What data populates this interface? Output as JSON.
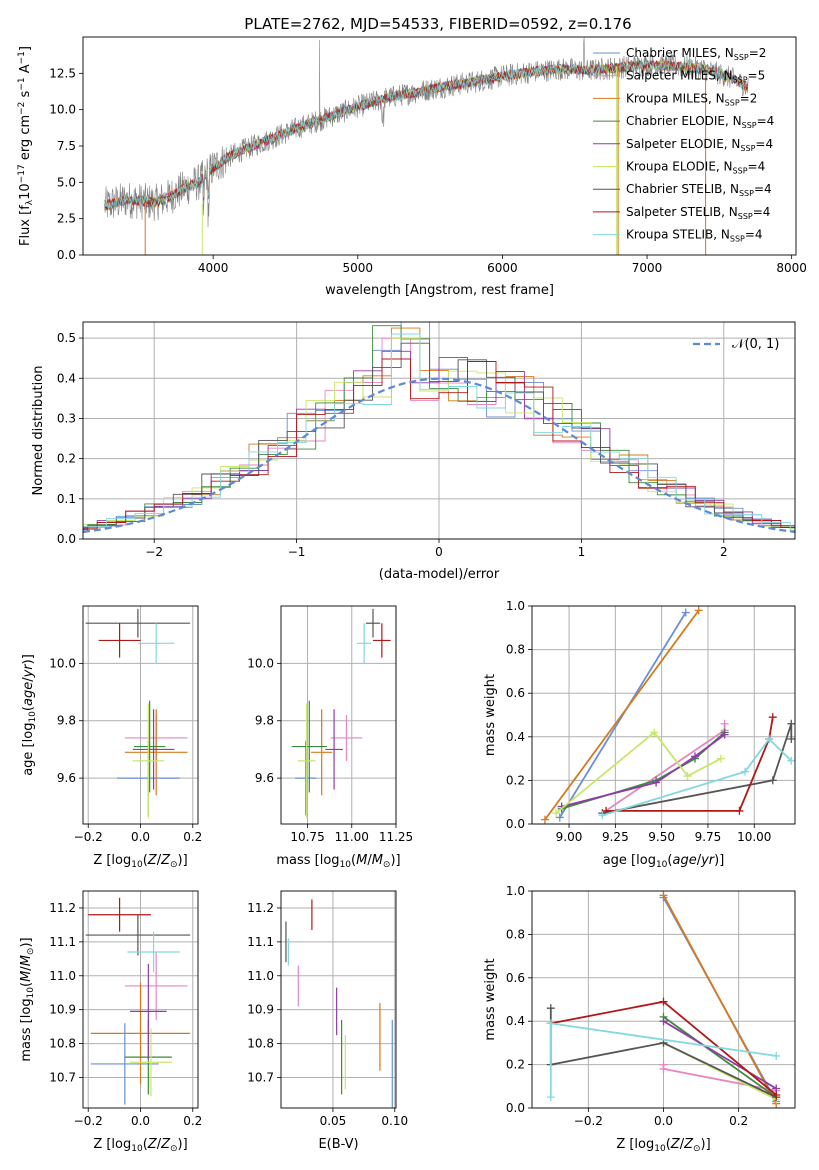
{
  "figure_title": "PLATE=2762, MJD=54533, FIBERID=0592, z=0.176",
  "colors": {
    "Chabrier MILES": "#6a8fd6",
    "Salpeter MILES": "#e487c0",
    "Kroupa MILES": "#d6781e",
    "Chabrier ELODIE": "#3c8a3c",
    "Salpeter ELODIE": "#8e3ca6",
    "Kroupa ELODIE": "#c8e66a",
    "Chabrier STELIB": "#555555",
    "Salpeter STELIB": "#b01818",
    "Kroupa STELIB": "#82d8df",
    "data": "#808080",
    "grid": "#b0b0b0"
  },
  "chart_data": [
    {
      "id": "spectrum",
      "type": "line",
      "title": "PLATE=2762, MJD=54533, FIBERID=0592, z=0.176",
      "xlabel": "wavelength [Angstrom, rest frame]",
      "ylabel_parts": [
        "Flux [f",
        "λ",
        "10",
        "−17",
        " erg cm",
        "−2",
        " s",
        "−1",
        " A",
        "−1",
        "]"
      ],
      "xlim": [
        3100,
        8030
      ],
      "ylim": [
        0,
        15
      ],
      "xticks": [
        4000,
        5000,
        6000,
        7000,
        8000
      ],
      "yticks": [
        0.0,
        2.5,
        5.0,
        7.5,
        10.0,
        12.5
      ],
      "grid": false,
      "legend_position": "right",
      "continuum_x": [
        3250,
        3400,
        3600,
        3700,
        3800,
        3900,
        4000,
        4100,
        4200,
        4400,
        4600,
        4800,
        5000,
        5200,
        5400,
        5600,
        5800,
        6000,
        6200,
        6400,
        6600,
        6800,
        7000,
        7200,
        7400,
        7600,
        7700
      ],
      "continuum_y": [
        3.4,
        3.8,
        3.6,
        4.0,
        4.6,
        5.0,
        6.0,
        6.7,
        7.2,
        8.0,
        8.8,
        9.5,
        10.2,
        10.8,
        11.2,
        11.6,
        11.9,
        12.3,
        12.6,
        12.8,
        12.7,
        12.9,
        13.1,
        13.0,
        12.8,
        12.1,
        11.5
      ],
      "series": [
        {
          "name": "Chabrier MILES",
          "n_ssp": "2"
        },
        {
          "name": "Salpeter MILES",
          "n_ssp": "5"
        },
        {
          "name": "Kroupa MILES",
          "n_ssp": "2"
        },
        {
          "name": "Chabrier ELODIE",
          "n_ssp": "4"
        },
        {
          "name": "Salpeter ELODIE",
          "n_ssp": "4"
        },
        {
          "name": "Kroupa ELODIE",
          "n_ssp": "4"
        },
        {
          "name": "Chabrier STELIB",
          "n_ssp": "4"
        },
        {
          "name": "Salpeter STELIB",
          "n_ssp": "4"
        },
        {
          "name": "Kroupa STELIB",
          "n_ssp": "4"
        }
      ]
    },
    {
      "id": "residuals",
      "type": "line",
      "xlabel": "(data-model)/error",
      "ylabel": "Normed distribution",
      "xlim": [
        -2.5,
        2.5
      ],
      "ylim": [
        0,
        0.54
      ],
      "xticks": [
        -2,
        -1,
        0,
        1,
        2
      ],
      "yticks": [
        0.0,
        0.1,
        0.2,
        0.3,
        0.4,
        0.5
      ],
      "grid": true,
      "legend": "𝒩(0, 1)",
      "legend_position": "top-right"
    },
    {
      "id": "age_vs_Z",
      "type": "scatter",
      "xlabel": "Z [log10(Z/Z⊙)]",
      "ylabel": "age  [log10(age/yr)]",
      "xlim": [
        -0.22,
        0.22
      ],
      "ylim": [
        9.44,
        10.2
      ],
      "xticks": [
        -0.2,
        0.0,
        0.2
      ],
      "yticks": [
        9.6,
        9.8,
        10.0
      ],
      "grid": true,
      "points": [
        {
          "series": "Chabrier MILES",
          "x": 0.03,
          "y": 9.6,
          "xerr": 0.12,
          "yerr": 0.13
        },
        {
          "series": "Salpeter MILES",
          "x": 0.06,
          "y": 9.74,
          "xerr": 0.12,
          "yerr": 0.08
        },
        {
          "series": "Kroupa MILES",
          "x": 0.06,
          "y": 9.69,
          "xerr": 0.12,
          "yerr": 0.15
        },
        {
          "series": "Chabrier ELODIE",
          "x": 0.035,
          "y": 9.71,
          "xerr": 0.06,
          "yerr": 0.16
        },
        {
          "series": "Salpeter ELODIE",
          "x": 0.05,
          "y": 9.7,
          "xerr": 0.08,
          "yerr": 0.14
        },
        {
          "series": "Kroupa ELODIE",
          "x": 0.03,
          "y": 9.66,
          "xerr": 0.06,
          "yerr": 0.2
        },
        {
          "series": "Chabrier STELIB",
          "x": -0.01,
          "y": 10.14,
          "xerr": 0.2,
          "yerr": 0.05
        },
        {
          "series": "Salpeter STELIB",
          "x": -0.08,
          "y": 10.08,
          "xerr": 0.08,
          "yerr": 0.06
        },
        {
          "series": "Kroupa STELIB",
          "x": 0.06,
          "y": 10.07,
          "xerr": 0.07,
          "yerr": 0.07
        }
      ]
    },
    {
      "id": "age_vs_mass",
      "type": "scatter",
      "xlabel": "mass [log10(M/M⊙)]",
      "xlim": [
        10.6,
        11.25
      ],
      "ylim": [
        9.44,
        10.2
      ],
      "xticks": [
        10.75,
        11.0,
        11.25
      ],
      "yticks": [
        9.6,
        9.8,
        10.0
      ],
      "grid": true,
      "points": [
        {
          "series": "Chabrier MILES",
          "x": 10.74,
          "y": 9.6,
          "xerr": 0.06,
          "yerr": 0.13
        },
        {
          "series": "Salpeter MILES",
          "x": 10.97,
          "y": 9.74,
          "xerr": 0.09,
          "yerr": 0.08
        },
        {
          "series": "Kroupa MILES",
          "x": 10.83,
          "y": 9.69,
          "xerr": 0.06,
          "yerr": 0.15
        },
        {
          "series": "Chabrier ELODIE",
          "x": 10.76,
          "y": 9.71,
          "xerr": 0.1,
          "yerr": 0.16
        },
        {
          "series": "Salpeter ELODIE",
          "x": 10.9,
          "y": 9.7,
          "xerr": 0.05,
          "yerr": 0.14
        },
        {
          "series": "Kroupa ELODIE",
          "x": 10.745,
          "y": 9.66,
          "xerr": 0.05,
          "yerr": 0.2
        },
        {
          "series": "Chabrier STELIB",
          "x": 11.12,
          "y": 10.14,
          "xerr": 0.04,
          "yerr": 0.05
        },
        {
          "series": "Salpeter STELIB",
          "x": 11.17,
          "y": 10.08,
          "xerr": 0.05,
          "yerr": 0.06
        },
        {
          "series": "Kroupa STELIB",
          "x": 11.07,
          "y": 10.07,
          "xerr": 0.04,
          "yerr": 0.07
        }
      ]
    },
    {
      "id": "weight_vs_age",
      "type": "line",
      "xlabel": "age  [log10(age/yr)]",
      "ylabel": "mass weight",
      "xlim": [
        8.8,
        10.22
      ],
      "ylim": [
        0,
        1.0
      ],
      "xticks": [
        9.0,
        9.25,
        9.5,
        9.75,
        10.0
      ],
      "yticks": [
        0.0,
        0.2,
        0.4,
        0.6,
        0.8,
        1.0
      ],
      "grid": true,
      "series": [
        {
          "name": "Chabrier MILES",
          "x": [
            8.95,
            9.63
          ],
          "y": [
            0.03,
            0.97
          ]
        },
        {
          "name": "Kroupa MILES",
          "x": [
            8.87,
            9.7
          ],
          "y": [
            0.02,
            0.98
          ]
        },
        {
          "name": "Salpeter MILES",
          "x": [
            9.18,
            9.84,
            9.84
          ],
          "y": [
            0.05,
            0.43,
            0.46
          ]
        },
        {
          "name": "Chabrier ELODIE",
          "x": [
            8.96,
            9.47,
            9.68,
            9.84
          ],
          "y": [
            0.07,
            0.2,
            0.3,
            0.42
          ]
        },
        {
          "name": "Salpeter ELODIE",
          "x": [
            8.96,
            9.47,
            9.68,
            9.84
          ],
          "y": [
            0.08,
            0.19,
            0.31,
            0.41
          ]
        },
        {
          "name": "Kroupa ELODIE",
          "x": [
            8.93,
            9.46,
            9.64,
            9.82
          ],
          "y": [
            0.05,
            0.42,
            0.22,
            0.3
          ]
        },
        {
          "name": "Chabrier STELIB",
          "x": [
            9.18,
            10.1,
            10.2,
            10.2
          ],
          "y": [
            0.05,
            0.2,
            0.46,
            0.39
          ]
        },
        {
          "name": "Salpeter STELIB",
          "x": [
            9.2,
            9.92,
            10.08,
            10.1
          ],
          "y": [
            0.06,
            0.06,
            0.39,
            0.49
          ]
        },
        {
          "name": "Kroupa STELIB",
          "x": [
            9.18,
            9.95,
            10.08,
            10.2
          ],
          "y": [
            0.04,
            0.24,
            0.39,
            0.29
          ]
        }
      ]
    },
    {
      "id": "mass_vs_Z",
      "type": "scatter",
      "xlabel": "Z [log10(Z/Z⊙)]",
      "ylabel": "mass [log10(M/M⊙)]",
      "xlim": [
        -0.22,
        0.22
      ],
      "ylim": [
        10.61,
        11.25
      ],
      "xticks": [
        -0.2,
        0.0,
        0.2
      ],
      "yticks": [
        10.7,
        10.8,
        10.9,
        11.0,
        11.1,
        11.2
      ],
      "grid": true,
      "points": [
        {
          "series": "Chabrier MILES",
          "x": -0.06,
          "y": 10.74,
          "xerr": 0.13,
          "yerr": 0.12
        },
        {
          "series": "Salpeter MILES",
          "x": 0.06,
          "y": 10.97,
          "xerr": 0.12,
          "yerr": 0.1
        },
        {
          "series": "Kroupa MILES",
          "x": 0.0,
          "y": 10.83,
          "xerr": 0.19,
          "yerr": 0.15
        },
        {
          "series": "Chabrier ELODIE",
          "x": 0.03,
          "y": 10.76,
          "xerr": 0.09,
          "yerr": 0.11
        },
        {
          "series": "Salpeter ELODIE",
          "x": 0.03,
          "y": 10.895,
          "xerr": 0.07,
          "yerr": 0.14
        },
        {
          "series": "Kroupa ELODIE",
          "x": 0.04,
          "y": 10.745,
          "xerr": 0.08,
          "yerr": 0.1
        },
        {
          "series": "Chabrier STELIB",
          "x": -0.01,
          "y": 11.12,
          "xerr": 0.2,
          "yerr": 0.06
        },
        {
          "series": "Salpeter STELIB",
          "x": -0.08,
          "y": 11.18,
          "xerr": 0.12,
          "yerr": 0.05
        },
        {
          "series": "Kroupa STELIB",
          "x": 0.05,
          "y": 11.07,
          "xerr": 0.1,
          "yerr": 0.06
        }
      ]
    },
    {
      "id": "mass_vs_ebv",
      "type": "scatter",
      "xlabel": "E(B-V)",
      "xlim": [
        0.008,
        0.101
      ],
      "ylim": [
        10.61,
        11.25
      ],
      "xticks": [
        0.05,
        0.1
      ],
      "yticks": [
        10.7,
        10.8,
        10.9,
        11.0,
        11.1,
        11.2
      ],
      "grid": true,
      "points": [
        {
          "series": "Chabrier MILES",
          "x": 0.098,
          "y": 10.74,
          "yerr": 0.13
        },
        {
          "series": "Salpeter MILES",
          "x": 0.022,
          "y": 10.97,
          "yerr": 0.06
        },
        {
          "series": "Kroupa MILES",
          "x": 0.088,
          "y": 10.82,
          "yerr": 0.1
        },
        {
          "series": "Chabrier ELODIE",
          "x": 0.057,
          "y": 10.76,
          "yerr": 0.11
        },
        {
          "series": "Salpeter ELODIE",
          "x": 0.053,
          "y": 10.895,
          "yerr": 0.07
        },
        {
          "series": "Kroupa ELODIE",
          "x": 0.06,
          "y": 10.745,
          "yerr": 0.08
        },
        {
          "series": "Chabrier STELIB",
          "x": 0.012,
          "y": 11.1,
          "yerr": 0.06
        },
        {
          "series": "Salpeter STELIB",
          "x": 0.033,
          "y": 11.18,
          "yerr": 0.045
        },
        {
          "series": "Kroupa STELIB",
          "x": 0.014,
          "y": 11.07,
          "yerr": 0.04
        }
      ]
    },
    {
      "id": "weight_vs_Z",
      "type": "line",
      "xlabel": "Z [log10(Z/Z⊙)]",
      "ylabel": "mass weight",
      "xlim": [
        -0.35,
        0.35
      ],
      "ylim": [
        0,
        1.0
      ],
      "xticks": [
        -0.2,
        0.0,
        0.2
      ],
      "yticks": [
        0.0,
        0.2,
        0.4,
        0.6,
        0.8,
        1.0
      ],
      "grid": true,
      "series": [
        {
          "name": "Chabrier MILES",
          "x": [
            0.0,
            0.3
          ],
          "y": [
            0.97,
            0.03
          ]
        },
        {
          "name": "Kroupa MILES",
          "x": [
            0.0,
            0.3
          ],
          "y": [
            0.98,
            0.02
          ]
        },
        {
          "name": "Salpeter MILES",
          "x": [
            0.0,
            0.0,
            0.3
          ],
          "y": [
            0.2,
            0.18,
            0.08
          ]
        },
        {
          "name": "Chabrier ELODIE",
          "x": [
            0.0,
            0.3
          ],
          "y": [
            0.42,
            0.05
          ]
        },
        {
          "name": "Salpeter ELODIE",
          "x": [
            0.0,
            0.3
          ],
          "y": [
            0.4,
            0.09
          ]
        },
        {
          "name": "Kroupa ELODIE",
          "x": [
            0.0,
            0.3
          ],
          "y": [
            0.3,
            0.04
          ]
        },
        {
          "name": "Chabrier STELIB",
          "x": [
            -0.3,
            -0.3,
            0.0,
            0.3
          ],
          "y": [
            0.46,
            0.2,
            0.3,
            0.05
          ]
        },
        {
          "name": "Salpeter STELIB",
          "x": [
            -0.3,
            0.0,
            0.3
          ],
          "y": [
            0.39,
            0.49,
            0.06
          ]
        },
        {
          "name": "Kroupa STELIB",
          "x": [
            -0.3,
            -0.3,
            0.3
          ],
          "y": [
            0.05,
            0.39,
            0.24
          ]
        }
      ]
    }
  ]
}
